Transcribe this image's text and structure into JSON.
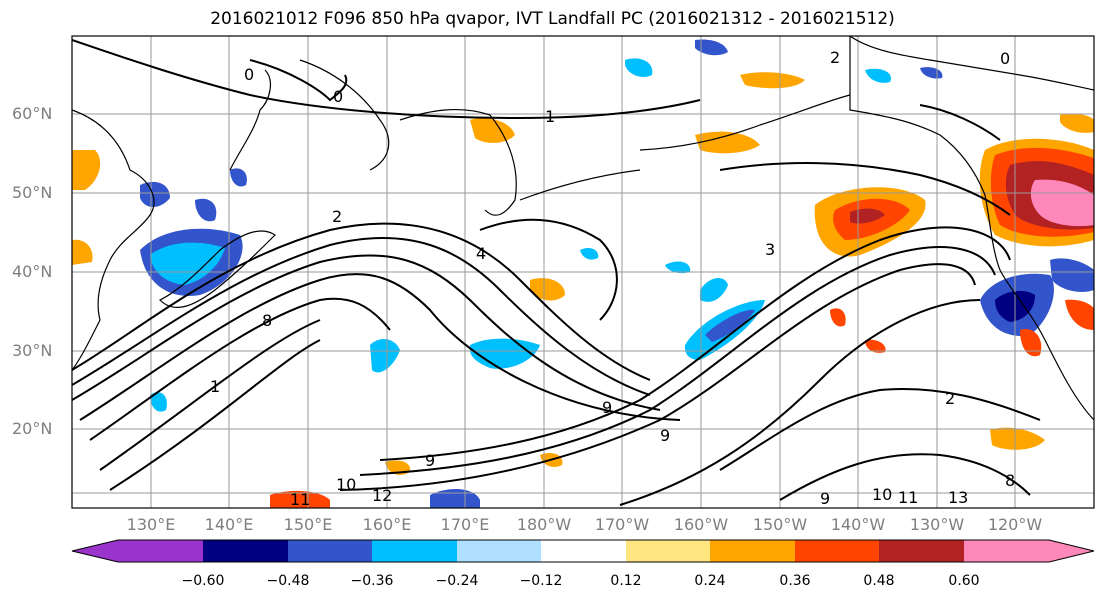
{
  "title": "2016021012 F096 850 hPa qvapor, IVT Landfall PC (2016021312 - 2016021512)",
  "lat_labels": [
    "60°N",
    "50°N",
    "40°N",
    "30°N",
    "20°N"
  ],
  "lon_labels": [
    "130°E",
    "140°E",
    "150°E",
    "160°E",
    "170°E",
    "180°W",
    "170°W",
    "160°W",
    "150°W",
    "140°W",
    "130°W",
    "120°W"
  ],
  "colorbar": {
    "ticks": [
      "−0.60",
      "−0.48",
      "−0.36",
      "−0.24",
      "−0.12",
      "0.12",
      "0.24",
      "0.36",
      "0.48",
      "0.60"
    ],
    "colors": [
      "#9933cc",
      "#000080",
      "#3355cc",
      "#00bfff",
      "#b0e0ff",
      "#ffffff",
      "#ffe680",
      "#ffa500",
      "#ff4500",
      "#b22222",
      "#ff88bb"
    ]
  },
  "contour_labels": [
    "1",
    "2",
    "3",
    "4",
    "2",
    "9",
    "10",
    "11",
    "12",
    "13",
    "9",
    "8",
    "1",
    "0",
    "0",
    "2",
    "9",
    "8",
    "10",
    "11",
    "9",
    "0"
  ]
}
